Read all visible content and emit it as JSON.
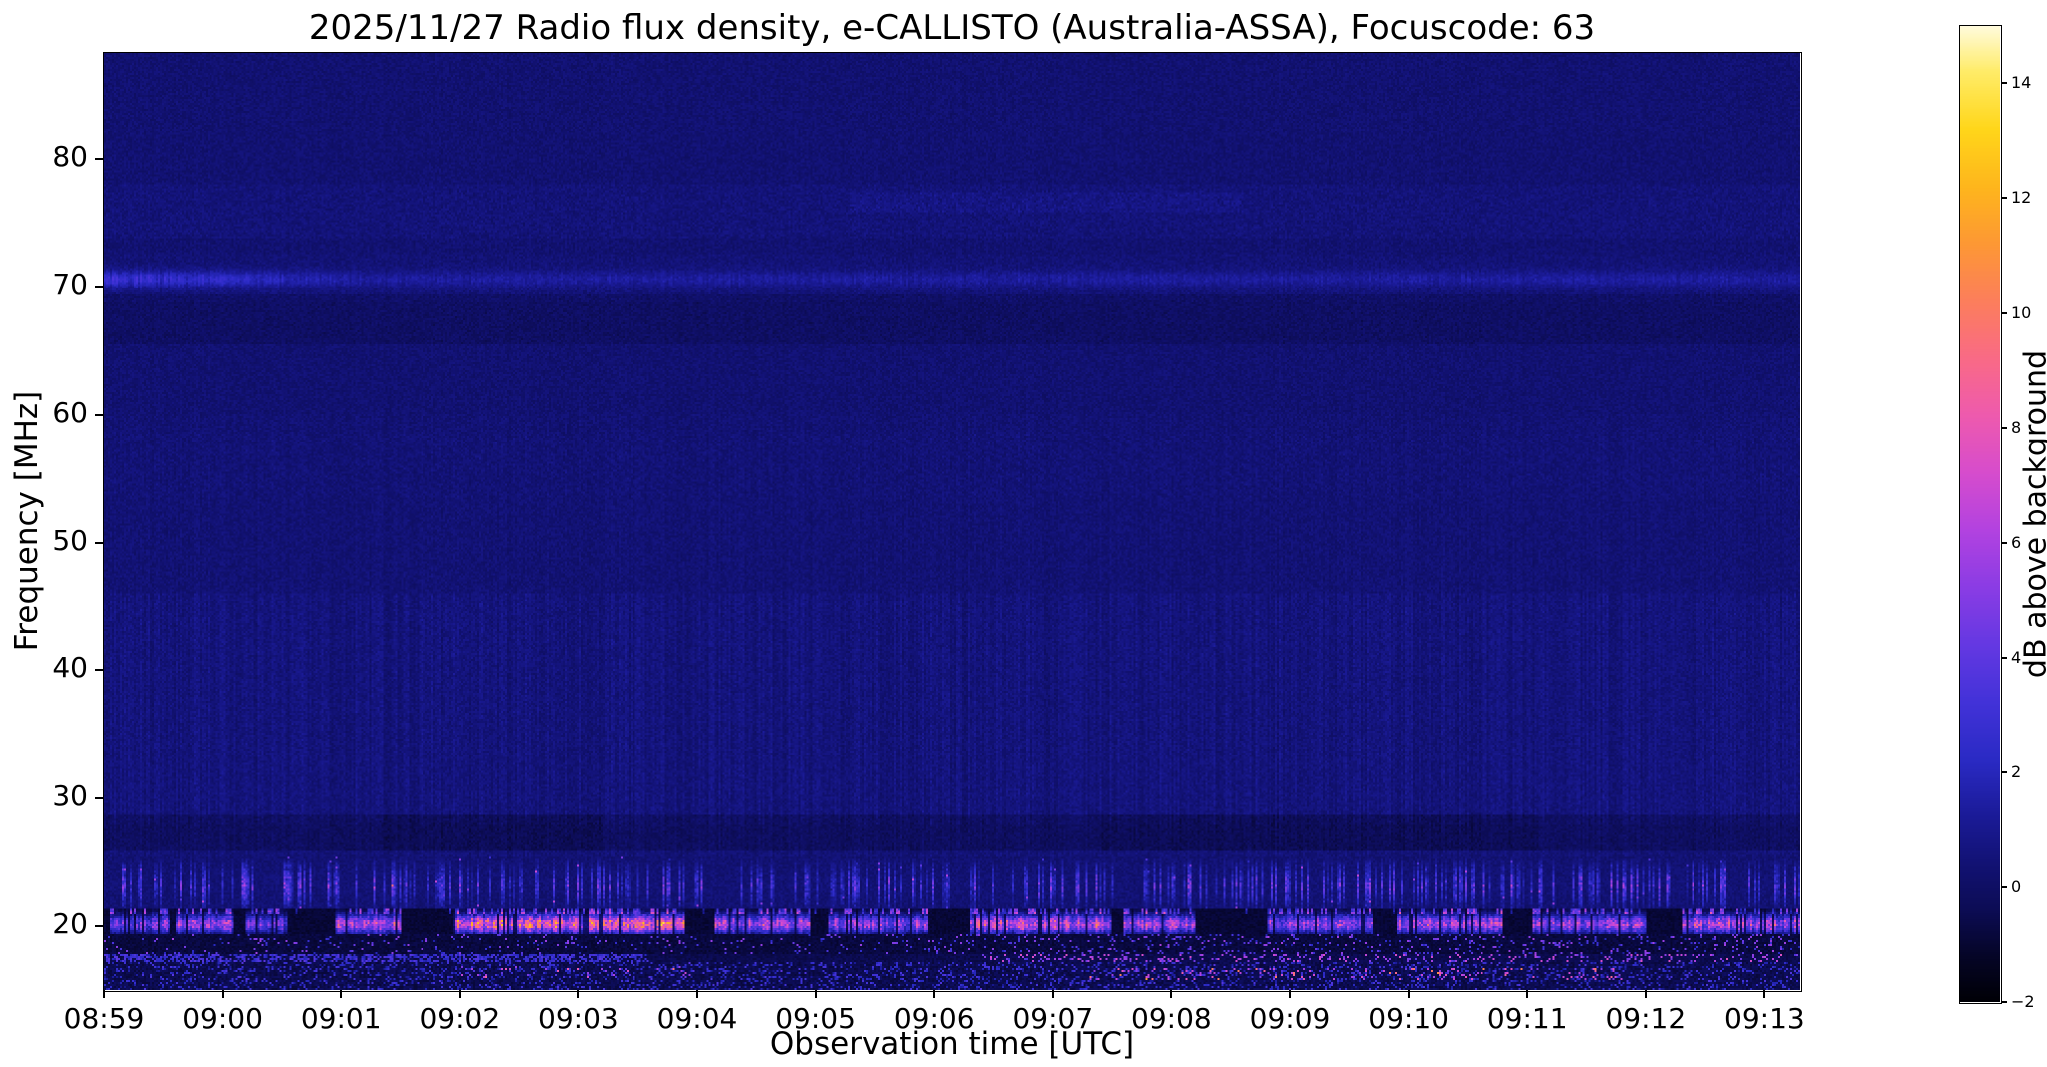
{
  "chart_data": {
    "type": "heatmap",
    "title": "2025/11/27  Radio flux density, e-CALLISTO (Australia-ASSA), Focuscode: 63",
    "xlabel": "Observation time [UTC]",
    "ylabel": "Frequency [MHz]",
    "colorbar_label": "dB above background",
    "x_tick_labels": [
      "08:59",
      "09:00",
      "09:01",
      "09:02",
      "09:03",
      "09:04",
      "09:05",
      "09:06",
      "09:07",
      "09:08",
      "09:09",
      "09:10",
      "09:11",
      "09:12",
      "09:13"
    ],
    "x_tick_minutes": [
      0,
      1,
      2,
      3,
      4,
      5,
      6,
      7,
      8,
      9,
      10,
      11,
      12,
      13,
      14
    ],
    "y_tick_labels": [
      "20",
      "30",
      "40",
      "50",
      "60",
      "70",
      "80"
    ],
    "y_tick_mhz": [
      20,
      30,
      40,
      50,
      60,
      70,
      80
    ],
    "colorbar_tick_labels": [
      "−2",
      "0",
      "2",
      "4",
      "6",
      "8",
      "10",
      "12",
      "14"
    ],
    "colorbar_tick_values": [
      -2,
      0,
      2,
      4,
      6,
      8,
      10,
      12,
      14
    ],
    "x_range_minutes": [
      0,
      14.3
    ],
    "x_start_time_utc": "08:59",
    "y_range_mhz": [
      15,
      88.3
    ],
    "value_range_db": [
      -2,
      15
    ],
    "grid": false,
    "legend": "none",
    "colormap_stops": [
      [
        -2.0,
        0,
        0,
        6
      ],
      [
        -1.2,
        5,
        5,
        40
      ],
      [
        -0.4,
        12,
        12,
        85
      ],
      [
        0.3,
        17,
        17,
        112
      ],
      [
        1.2,
        26,
        26,
        150
      ],
      [
        2.2,
        42,
        42,
        196
      ],
      [
        3.2,
        66,
        50,
        216
      ],
      [
        4.2,
        100,
        56,
        226
      ],
      [
        5.2,
        138,
        60,
        228
      ],
      [
        6.2,
        178,
        66,
        224
      ],
      [
        7.2,
        214,
        76,
        205
      ],
      [
        8.2,
        238,
        90,
        174
      ],
      [
        9.2,
        249,
        106,
        134
      ],
      [
        10.2,
        252,
        126,
        92
      ],
      [
        11.2,
        253,
        152,
        52
      ],
      [
        12.2,
        254,
        182,
        28
      ],
      [
        13.2,
        255,
        214,
        26
      ],
      [
        14.2,
        255,
        236,
        104
      ],
      [
        15.0,
        255,
        251,
        221
      ]
    ],
    "spectrogram_features": {
      "background_level_db": 0.25,
      "noise_db": 0.7,
      "global_column_noise_db": 0.12,
      "vertical_stripe_zones": [
        {
          "f_mhz": [
            46,
            60
          ],
          "amp_db": 0.15
        },
        {
          "f_mhz": [
            28,
            46
          ],
          "amp_db": 0.55
        },
        {
          "f_mhz": [
            25.5,
            28
          ],
          "amp_db": 0.3
        }
      ],
      "narrowband_line_70mhz": {
        "center_mhz": 70.6,
        "sigma_mhz": 0.45,
        "amp_db_early": 2.6,
        "amp_db_late": 1.0,
        "early_until_min": 2.3
      },
      "speckle_band_76mhz": {
        "f_mhz": [
          73.8,
          78.0
        ],
        "amp_db": 0.35,
        "enhanced": {
          "t_min": [
            6.3,
            9.6
          ],
          "f_mhz": [
            75.8,
            77.4
          ],
          "amp_db": 0.5
        }
      },
      "dark_hatched_band_67mhz": {
        "f_mhz": [
          65.5,
          69.4
        ],
        "drop_db": 0.3
      },
      "hatch_band_56mhz": {
        "f_mhz": [
          53.5,
          58.5
        ],
        "amp_db": 0.3
      },
      "dark_band_27mhz": {
        "f_mhz": [
          25.9,
          28.7
        ],
        "drop_db": 0.55,
        "darker_windows_min": [
          [
            2.3,
            4.2
          ],
          [
            8.4,
            12.1
          ]
        ]
      },
      "spike_band_23mhz": {
        "f_mhz": [
          21.4,
          25.4
        ],
        "peak_mhz": 23.2,
        "probability": 0.3,
        "amp_db": [
          1.5,
          5.5
        ]
      },
      "emission_band_20mhz": {
        "f_mhz": [
          19.3,
          21.45
        ],
        "center_mhz": 20.15,
        "sigma_mhz": 0.5,
        "floor_db": -1.2,
        "top_line_mhz": 21.1,
        "bursts_min_db": [
          [
            0.05,
            0.55,
            8
          ],
          [
            0.6,
            1.1,
            9
          ],
          [
            1.2,
            1.55,
            7
          ],
          [
            1.95,
            2.5,
            10
          ],
          [
            2.95,
            4.9,
            13
          ],
          [
            5.15,
            5.95,
            10
          ],
          [
            6.1,
            6.95,
            9
          ],
          [
            7.3,
            8.5,
            11
          ],
          [
            8.6,
            9.2,
            10
          ],
          [
            9.8,
            10.7,
            9
          ],
          [
            10.9,
            11.8,
            10
          ],
          [
            12.05,
            13.0,
            9
          ],
          [
            13.3,
            14.3,
            10
          ]
        ]
      },
      "dark_band_18mhz": {
        "f_mhz": [
          17.8,
          19.3
        ],
        "floor_db": -1.1,
        "speckle_prob": 0.05,
        "speckle_amp_db": [
          2.5,
          6.5
        ]
      },
      "line_17mhz": {
        "f_mhz": [
          17.15,
          17.8
        ],
        "early_until_min": 4.6,
        "early_prob": 0.55,
        "early_amp_db": [
          2.2,
          4.4
        ],
        "late_prob": 0.18,
        "late_amp_db": [
          4,
          8
        ]
      },
      "bottom_band": {
        "f_mhz": [
          15,
          17.15
        ],
        "floor_db": -0.9,
        "speckle_prob": 0.2,
        "speckle_amp_db": [
          1.5,
          4
        ],
        "hot_spots": [
          {
            "t_min": [
              2.9,
              5.0
            ],
            "f_mhz": [
              15.9,
              16.8
            ],
            "prob": 0.06,
            "amp_db": [
              4,
              7
            ]
          },
          {
            "t_min": [
              8.3,
              12.8
            ],
            "f_mhz": [
              15.8,
              16.7
            ],
            "prob": 0.1,
            "amp_db": [
              5,
              8.5
            ]
          }
        ]
      }
    }
  }
}
